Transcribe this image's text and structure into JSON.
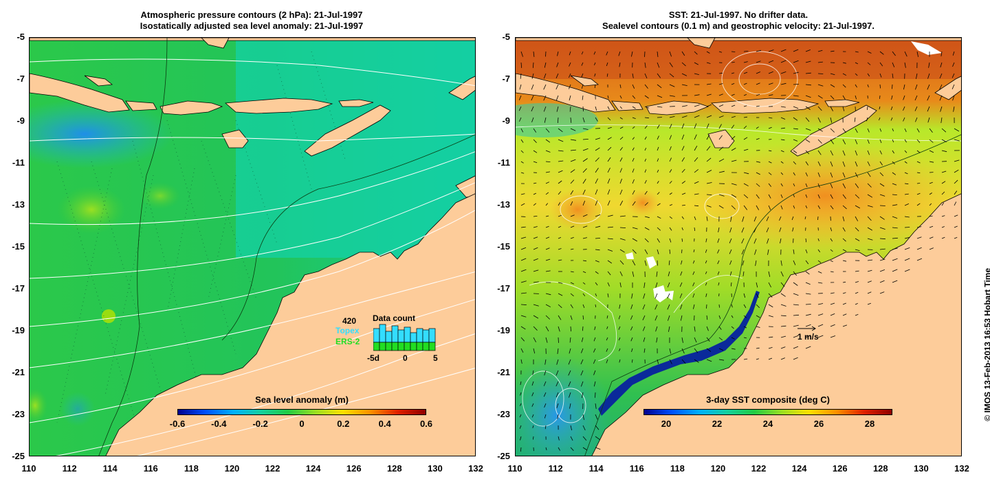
{
  "left_panel": {
    "title_line1": "Atmospheric pressure contours (2 hPa): 21-Jul-1997",
    "title_line2": "Isostatically adjusted sea level anomaly: 21-Jul-1997",
    "colorbar": {
      "label": "Sea level anomaly (m)",
      "ticks": [
        "-0.6",
        "-0.4",
        "-0.2",
        "0",
        "0.2",
        "0.4",
        "0.6"
      ]
    },
    "data_count": {
      "label": "Data count",
      "total": "420",
      "series1": "Topex",
      "series2": "ERS-2",
      "axis_ticks": [
        "-5d",
        "0",
        "5"
      ],
      "topex_color": "#33ddff",
      "ers_color": "#22dd22"
    }
  },
  "right_panel": {
    "title_line1": "SST: 21-Jul-1997. No drifter data.",
    "title_line2": "Sealevel contours (0.1 m) and geostrophic velocity: 21-Jul-1997.",
    "colorbar": {
      "label": "3-day SST composite (deg C)",
      "ticks": [
        "20",
        "22",
        "24",
        "26",
        "28"
      ]
    },
    "velocity_scale": "1 m/s"
  },
  "axes": {
    "y_ticks": [
      "-5",
      "-7",
      "-9",
      "-11",
      "-13",
      "-15",
      "-17",
      "-19",
      "-21",
      "-23",
      "-25"
    ],
    "x_ticks": [
      "110",
      "112",
      "114",
      "116",
      "118",
      "120",
      "122",
      "124",
      "126",
      "128",
      "130",
      "132"
    ]
  },
  "copyright": "© IMOS 13-Feb-2013 16:53 Hobart Time",
  "colors": {
    "land": "#fdcc9a",
    "ocean_green": "#22cc44",
    "ocean_teal": "#11d0a8"
  }
}
